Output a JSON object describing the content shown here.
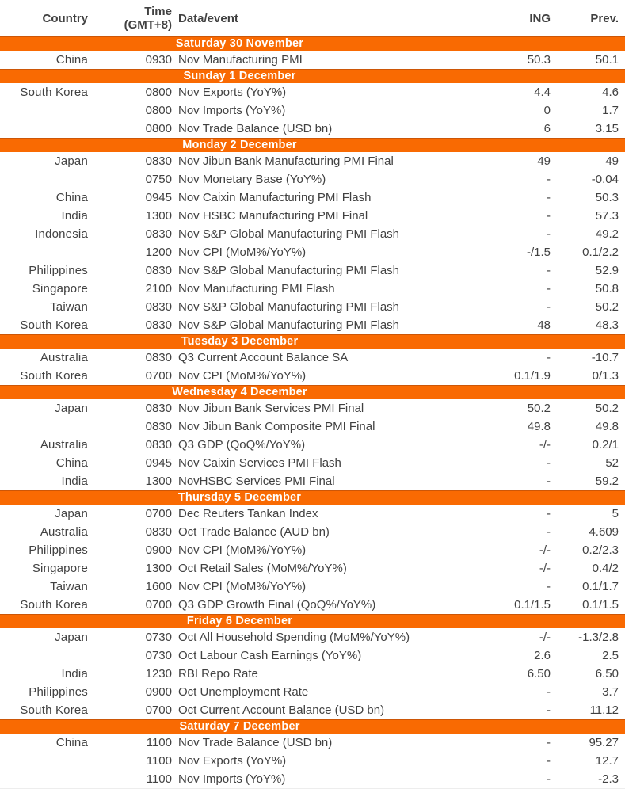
{
  "colors": {
    "accent_orange": "#F96A02",
    "accent_orange_dark_edge": "#CC5607",
    "section_title_text": "#FFFFFF",
    "body_text": "#414141"
  },
  "header": {
    "country": "Country",
    "time_line1": "Time",
    "time_line2": "(GMT+8)",
    "data_event": "Data/event",
    "ing": "ING",
    "prev": "Prev."
  },
  "sections": [
    {
      "title": "Saturday 30 November",
      "rows": [
        {
          "country": "China",
          "time": "0930",
          "event": "Nov Manufacturing PMI",
          "ing": "50.3",
          "prev": "50.1"
        }
      ]
    },
    {
      "title": "Sunday 1 December",
      "rows": [
        {
          "country": "South Korea",
          "time": "0800",
          "event": "Nov Exports (YoY%)",
          "ing": "4.4",
          "prev": "4.6"
        },
        {
          "country": "",
          "time": "0800",
          "event": "Nov Imports (YoY%)",
          "ing": "0",
          "prev": "1.7"
        },
        {
          "country": "",
          "time": "0800",
          "event": "Nov Trade Balance (USD bn)",
          "ing": "6",
          "prev": "3.15"
        }
      ]
    },
    {
      "title": "Monday 2 December",
      "rows": [
        {
          "country": "Japan",
          "time": "0830",
          "event": "Nov Jibun Bank Manufacturing PMI Final",
          "ing": "49",
          "prev": "49"
        },
        {
          "country": "",
          "time": "0750",
          "event": "Nov Monetary Base (YoY%)",
          "ing": "-",
          "prev": "-0.04"
        },
        {
          "country": "China",
          "time": "0945",
          "event": "Nov Caixin Manufacturing PMI Flash",
          "ing": "-",
          "prev": "50.3"
        },
        {
          "country": "India",
          "time": "1300",
          "event": "Nov HSBC Manufacturing PMI Final",
          "ing": "-",
          "prev": "57.3"
        },
        {
          "country": "Indonesia",
          "time": "0830",
          "event": "Nov S&P Global Manufacturing PMI Flash",
          "ing": "-",
          "prev": "49.2"
        },
        {
          "country": "",
          "time": "1200",
          "event": "Nov CPI (MoM%/YoY%)",
          "ing": "-/1.5",
          "prev": "0.1/2.2"
        },
        {
          "country": "Philippines",
          "time": "0830",
          "event": "Nov S&P Global Manufacturing PMI Flash",
          "ing": "-",
          "prev": "52.9"
        },
        {
          "country": "Singapore",
          "time": "2100",
          "event": "Nov Manufacturing PMI Flash",
          "ing": "-",
          "prev": "50.8"
        },
        {
          "country": "Taiwan",
          "time": "0830",
          "event": "Nov S&P Global Manufacturing PMI Flash",
          "ing": "-",
          "prev": "50.2"
        },
        {
          "country": "South Korea",
          "time": "0830",
          "event": "Nov S&P Global Manufacturing PMI Flash",
          "ing": "48",
          "prev": "48.3"
        }
      ]
    },
    {
      "title": "Tuesday 3 December",
      "rows": [
        {
          "country": "Australia",
          "time": "0830",
          "event": "Q3 Current Account Balance SA",
          "ing": "-",
          "prev": "-10.7"
        },
        {
          "country": "South Korea",
          "time": "0700",
          "event": "Nov CPI (MoM%/YoY%)",
          "ing": "0.1/1.9",
          "prev": "0/1.3"
        }
      ]
    },
    {
      "title": "Wednesday 4 December",
      "rows": [
        {
          "country": "Japan",
          "time": "0830",
          "event": "Nov Jibun Bank Services PMI Final",
          "ing": "50.2",
          "prev": "50.2"
        },
        {
          "country": "",
          "time": "0830",
          "event": "Nov Jibun Bank Composite PMI Final",
          "ing": "49.8",
          "prev": "49.8"
        },
        {
          "country": "Australia",
          "time": "0830",
          "event": "Q3 GDP (QoQ%/YoY%)",
          "ing": "-/-",
          "prev": "0.2/1"
        },
        {
          "country": "China",
          "time": "0945",
          "event": "Nov Caixin Services PMI Flash",
          "ing": "-",
          "prev": "52"
        },
        {
          "country": "India",
          "time": "1300",
          "event": "NovHSBC Services PMI Final",
          "ing": "-",
          "prev": "59.2"
        }
      ]
    },
    {
      "title": "Thursday 5 December",
      "rows": [
        {
          "country": "Japan",
          "time": "0700",
          "event": "Dec Reuters Tankan Index",
          "ing": "-",
          "prev": "5"
        },
        {
          "country": "Australia",
          "time": "0830",
          "event": "Oct Trade Balance (AUD bn)",
          "ing": "-",
          "prev": "4.609"
        },
        {
          "country": "Philippines",
          "time": "0900",
          "event": "Nov CPI (MoM%/YoY%)",
          "ing": "-/-",
          "prev": "0.2/2.3"
        },
        {
          "country": "Singapore",
          "time": "1300",
          "event": "Oct Retail Sales (MoM%/YoY%)",
          "ing": "-/-",
          "prev": "0.4/2"
        },
        {
          "country": "Taiwan",
          "time": "1600",
          "event": "Nov CPI (MoM%/YoY%)",
          "ing": "-",
          "prev": "0.1/1.7"
        },
        {
          "country": "South Korea",
          "time": "0700",
          "event": "Q3 GDP Growth Final (QoQ%/YoY%)",
          "ing": "0.1/1.5",
          "prev": "0.1/1.5"
        }
      ]
    },
    {
      "title": "Friday 6 December",
      "rows": [
        {
          "country": "Japan",
          "time": "0730",
          "event": "Oct All Household Spending (MoM%/YoY%)",
          "ing": "-/-",
          "prev": "-1.3/2.8"
        },
        {
          "country": "",
          "time": "0730",
          "event": "Oct Labour Cash Earnings (YoY%)",
          "ing": "2.6",
          "prev": "2.5"
        },
        {
          "country": "India",
          "time": "1230",
          "event": "RBI Repo Rate",
          "ing": "6.50",
          "prev": "6.50"
        },
        {
          "country": "Philippines",
          "time": "0900",
          "event": "Oct Unemployment Rate",
          "ing": "-",
          "prev": "3.7"
        },
        {
          "country": "South Korea",
          "time": "0700",
          "event": "Oct Current Account Balance (USD bn)",
          "ing": "-",
          "prev": "11.12"
        }
      ]
    },
    {
      "title": "Saturday 7 December",
      "rows": [
        {
          "country": "China",
          "time": "1100",
          "event": "Nov Trade Balance (USD bn)",
          "ing": "-",
          "prev": "95.27"
        },
        {
          "country": "",
          "time": "1100",
          "event": "Nov Exports (YoY%)",
          "ing": "-",
          "prev": "12.7"
        },
        {
          "country": "",
          "time": "1100",
          "event": "Nov Imports (YoY%)",
          "ing": "-",
          "prev": "-2.3"
        }
      ]
    }
  ]
}
